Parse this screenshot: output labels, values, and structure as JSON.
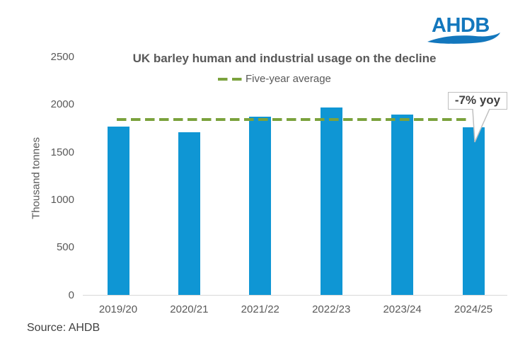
{
  "logo": {
    "text": "AHDB",
    "color": "#1377bd"
  },
  "chart_data": {
    "type": "bar",
    "title": "UK barley human and industrial usage on the decline",
    "ylabel": "Thousand tonnes",
    "xlabel": "",
    "categories": [
      "2019/20",
      "2020/21",
      "2021/22",
      "2022/23",
      "2023/24",
      "2024/25"
    ],
    "values": [
      1775,
      1710,
      1875,
      1970,
      1895,
      1765
    ],
    "bar_color": "#0f96d4",
    "average_line": {
      "label": "Five-year average",
      "value": 1845,
      "color": "#7ba23d",
      "style": "dashed"
    },
    "annotation": {
      "text": "-7% yoy",
      "target_category": "2024/25"
    },
    "ylim": [
      0,
      2500
    ],
    "yticks": [
      0,
      500,
      1000,
      1500,
      2000,
      2500
    ],
    "grid": false,
    "legend_position": "top-center"
  },
  "colors": {
    "text_gray": "#595959",
    "dark_gray": "#404040",
    "axis_gray": "#d9d9d9",
    "callout_border": "#bfbfbf"
  },
  "source": {
    "text": "Source: AHDB"
  }
}
